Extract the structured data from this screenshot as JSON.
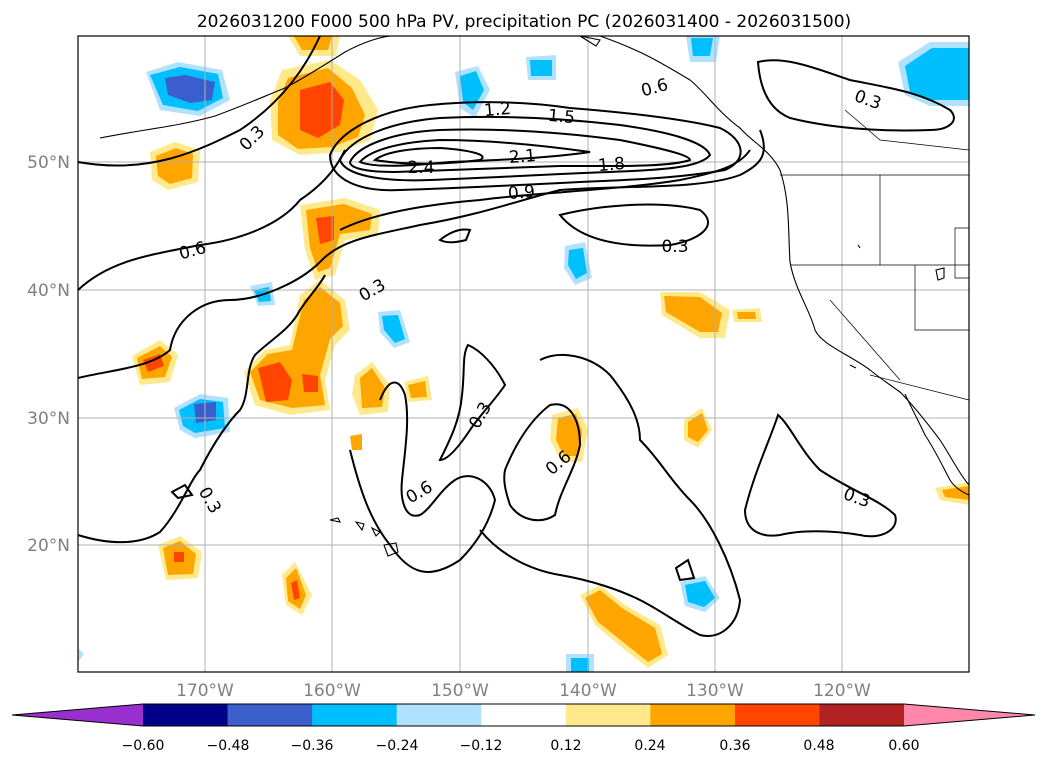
{
  "title": "2026031200 F000 500 hPa PV, precipitation PC (2026031400 - 2026031500)",
  "map": {
    "lat_labels": [
      "50°N",
      "40°N",
      "30°N",
      "20°N"
    ],
    "lon_labels": [
      "170°W",
      "160°W",
      "150°W",
      "140°W",
      "130°W",
      "120°W"
    ]
  },
  "contour_labels": [
    "0.3",
    "0.3",
    "0.3",
    "0.3",
    "0.3",
    "0.3",
    "0.3",
    "0.6",
    "0.6",
    "0.6",
    "0.6",
    "0.9",
    "1.2",
    "1.5",
    "1.8",
    "2.1",
    "2.4"
  ],
  "colorbar": {
    "ticks": [
      "−0.60",
      "−0.48",
      "−0.36",
      "−0.24",
      "−0.12",
      "0.12",
      "0.24",
      "0.36",
      "0.48",
      "0.60"
    ],
    "colors": [
      "#9a2fd0",
      "#00008b",
      "#3a5fcd",
      "#00bfff",
      "#b0e2ff",
      "#ffffff",
      "#ffe98a",
      "#ffa500",
      "#ff4500",
      "#b22222",
      "#ff88aa"
    ]
  }
}
